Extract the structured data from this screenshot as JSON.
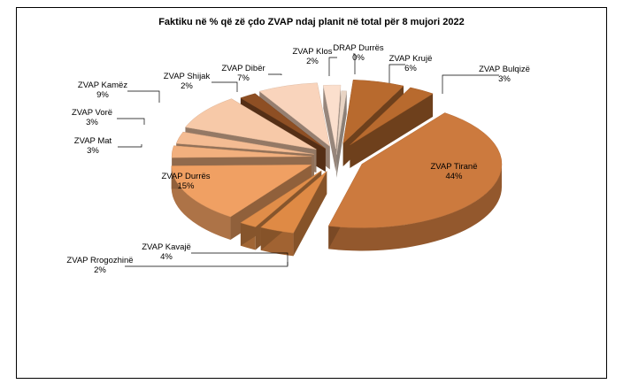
{
  "chart_data": {
    "type": "pie",
    "title": "Faktiku në % që zë çdo ZVAP ndaj planit në total për 8 mujori   2022",
    "slices": [
      {
        "label": "DRAP Durrës",
        "value": 0,
        "pct": "0%",
        "color": "#e8d4c4"
      },
      {
        "label": "ZVAP Krujë",
        "value": 6,
        "pct": "6%",
        "color": "#b86a2e"
      },
      {
        "label": "ZVAP Bulqizë",
        "value": 3,
        "pct": "3%",
        "color": "#b86a2e"
      },
      {
        "label": "ZVAP Tiranë",
        "value": 44,
        "pct": "44%",
        "color": "#cc7a3e"
      },
      {
        "label": "ZVAP Kavajë",
        "value": 4,
        "pct": "4%",
        "color": "#df8a45"
      },
      {
        "label": "ZVAP Rrogozhinë",
        "value": 2,
        "pct": "2%",
        "color": "#e08d49"
      },
      {
        "label": "ZVAP Durrës",
        "value": 15,
        "pct": "15%",
        "color": "#f0a063"
      },
      {
        "label": "ZVAP Mat",
        "value": 3,
        "pct": "3%",
        "color": "#f2b07e"
      },
      {
        "label": "ZVAP  Vorë",
        "value": 3,
        "pct": "3%",
        "color": "#f4bc93"
      },
      {
        "label": "ZVAP Kamëz",
        "value": 9,
        "pct": "9%",
        "color": "#f7c9a8"
      },
      {
        "label": "ZVAP Shijak",
        "value": 2,
        "pct": "2%",
        "color": "#8e4f24"
      },
      {
        "label": "ZVAP Dibër",
        "value": 7,
        "pct": "7%",
        "color": "#f9d4bc"
      },
      {
        "label": "ZVAP Klos",
        "value": 2,
        "pct": "2%",
        "color": "#fbdfcd"
      }
    ]
  }
}
